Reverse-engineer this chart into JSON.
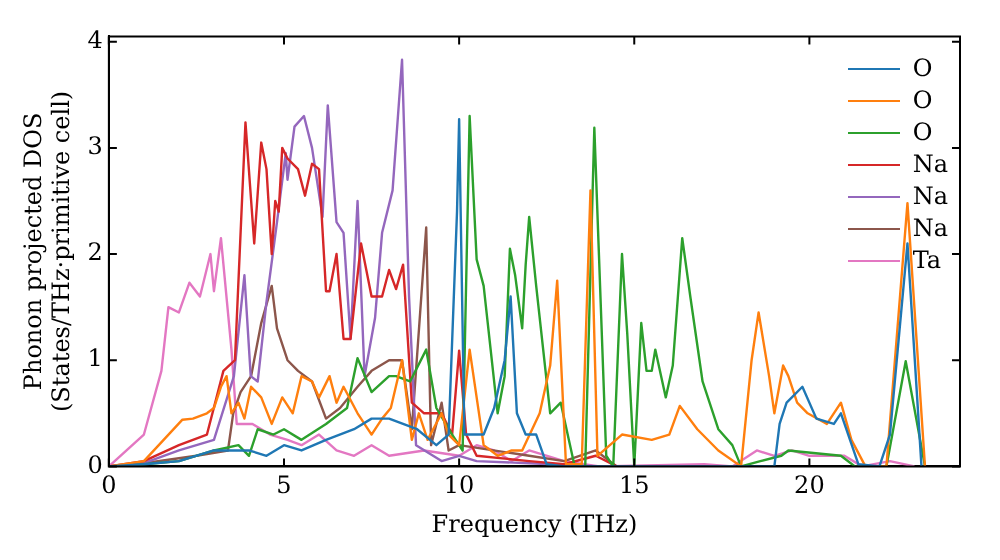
{
  "chart_data": {
    "type": "line",
    "xlabel": "Frequency (THz)",
    "ylabel": "Phonon projected DOS\n(States/THz·primitive cell)",
    "xlim": [
      0,
      24.3
    ],
    "ylim": [
      0,
      4.05
    ],
    "xticks": [
      0,
      5,
      10,
      15,
      20
    ],
    "yticks": [
      0,
      1,
      2,
      3,
      4
    ],
    "legend": "top right",
    "grid": false,
    "series": [
      {
        "name": "O",
        "color": "#1f77b4",
        "x": [
          0,
          1,
          2,
          3,
          4,
          4.5,
          5,
          5.5,
          6.2,
          7,
          7.5,
          8,
          8.8,
          9.35,
          9.7,
          9.94,
          10.0,
          10.15,
          10.7,
          11.0,
          11.3,
          11.47,
          11.65,
          11.9,
          12.2,
          12.5,
          13,
          19,
          19.15,
          19.35,
          19.5,
          19.8,
          20.2,
          20.7,
          20.9,
          21.4,
          22,
          22.3,
          22.8,
          23.2
        ],
        "values": [
          0,
          0.02,
          0.05,
          0.15,
          0.15,
          0.1,
          0.2,
          0.15,
          0.25,
          0.35,
          0.45,
          0.45,
          0.35,
          0.2,
          0.3,
          2.4,
          3.27,
          0.3,
          0.3,
          0.55,
          1.0,
          1.6,
          0.5,
          0.3,
          0.3,
          0.02,
          0,
          0,
          0.4,
          0.6,
          0.65,
          0.75,
          0.45,
          0.4,
          0.5,
          0.02,
          0,
          0.3,
          2.1,
          0
        ]
      },
      {
        "name": "O",
        "color": "#ff7f0e",
        "x": [
          0,
          1,
          2.1,
          2.4,
          2.8,
          3.0,
          3.2,
          3.36,
          3.5,
          3.7,
          3.87,
          4.06,
          4.35,
          4.65,
          4.95,
          5.25,
          5.5,
          5.8,
          6.0,
          6.3,
          6.5,
          6.7,
          7.1,
          7.5,
          7.8,
          8.05,
          8.37,
          8.65,
          8.85,
          9.1,
          9.5,
          9.7,
          10.0,
          10.3,
          10.7,
          11.1,
          11.5,
          11.8,
          12.3,
          12.6,
          12.8,
          13.05,
          13.5,
          13.75,
          13.95,
          14.65,
          15.5,
          16.0,
          16.3,
          16.8,
          17.4,
          18.05,
          18.35,
          18.55,
          18.85,
          19.0,
          19.25,
          19.4,
          19.65,
          19.95,
          20.5,
          20.9,
          21.2,
          21.6,
          22.2,
          22.8,
          23.3
        ],
        "values": [
          0,
          0.05,
          0.44,
          0.45,
          0.5,
          0.55,
          0.75,
          0.85,
          0.5,
          0.6,
          0.45,
          0.75,
          0.65,
          0.4,
          0.65,
          0.5,
          0.85,
          0.8,
          0.65,
          0.85,
          0.6,
          0.75,
          0.5,
          0.3,
          0.45,
          0.55,
          1.0,
          0.25,
          0.5,
          0.25,
          0.5,
          0.3,
          0.2,
          1.1,
          0.2,
          0.1,
          0.15,
          0.15,
          0.5,
          0.95,
          1.75,
          0.02,
          0.02,
          2.6,
          0.1,
          0.3,
          0.25,
          0.3,
          0.57,
          0.35,
          0.15,
          0,
          1.0,
          1.45,
          0.85,
          0.5,
          0.95,
          0.85,
          0.6,
          0.5,
          0.4,
          0.6,
          0.25,
          0,
          0,
          2.48,
          0
        ]
      },
      {
        "name": "O",
        "color": "#2ca02c",
        "x": [
          0,
          1,
          2,
          3,
          3.7,
          4.0,
          4.25,
          4.7,
          5.0,
          5.5,
          6.2,
          6.8,
          7.1,
          7.5,
          8.0,
          8.2,
          8.6,
          9.06,
          9.35,
          9.8,
          10.1,
          10.3,
          10.5,
          10.7,
          11.1,
          11.3,
          11.45,
          11.6,
          11.8,
          11.9,
          12.0,
          12.2,
          12.6,
          12.9,
          13.3,
          13.6,
          13.86,
          14.2,
          14.4,
          14.65,
          14.8,
          15.0,
          15.2,
          15.35,
          15.5,
          15.6,
          15.9,
          16.1,
          16.37,
          16.6,
          16.95,
          17.4,
          17.8,
          18.05,
          18.6,
          19.2,
          19.4,
          20.9,
          21.3,
          22.2,
          22.75,
          23.3
        ],
        "values": [
          0,
          0.02,
          0.05,
          0.15,
          0.2,
          0.1,
          0.35,
          0.3,
          0.35,
          0.25,
          0.4,
          0.55,
          1.02,
          0.7,
          0.85,
          0.85,
          0.8,
          1.1,
          0.55,
          0.3,
          0.15,
          3.3,
          1.95,
          1.7,
          0.5,
          0.85,
          2.05,
          1.8,
          1.3,
          1.9,
          2.35,
          1.7,
          0.5,
          0.6,
          0,
          0,
          3.19,
          0.1,
          0,
          2.0,
          1.25,
          0,
          1.35,
          0.9,
          0.9,
          1.1,
          0.65,
          0.95,
          2.15,
          1.6,
          0.8,
          0.35,
          0.2,
          0,
          0.05,
          0.1,
          0.15,
          0.1,
          0,
          0,
          0.99,
          0
        ]
      },
      {
        "name": "Na",
        "color": "#d62728",
        "x": [
          0,
          1,
          2,
          2.8,
          3.27,
          3.6,
          3.9,
          4.15,
          4.35,
          4.5,
          4.65,
          4.75,
          4.85,
          4.95,
          5.1,
          5.4,
          5.6,
          5.8,
          6.0,
          6.2,
          6.3,
          6.5,
          6.7,
          6.9,
          7.2,
          7.5,
          7.8,
          8.0,
          8.2,
          8.4,
          8.65,
          9.0,
          9.5,
          9.8,
          10.0,
          10.2,
          10.5,
          12,
          13,
          13.9,
          14.5
        ],
        "values": [
          0,
          0.05,
          0.2,
          0.3,
          0.9,
          1.0,
          3.24,
          2.1,
          3.05,
          2.8,
          2.0,
          2.5,
          2.4,
          3.0,
          2.9,
          2.8,
          2.55,
          2.85,
          2.8,
          1.65,
          1.65,
          2.0,
          1.2,
          1.2,
          2.1,
          1.6,
          1.6,
          1.85,
          1.67,
          1.9,
          0.6,
          0.5,
          0.5,
          0.3,
          1.09,
          0.3,
          0.1,
          0.05,
          0.02,
          0.1,
          0
        ]
      },
      {
        "name": "Na",
        "color": "#9467bd",
        "x": [
          0,
          1,
          2,
          3,
          3.57,
          3.87,
          4.05,
          4.25,
          4.5,
          4.8,
          5.05,
          5.1,
          5.3,
          5.57,
          5.8,
          6.1,
          6.25,
          6.5,
          6.7,
          6.9,
          7.1,
          7.3,
          7.6,
          7.8,
          8.1,
          8.37,
          8.57,
          8.77,
          9.5,
          10.0,
          10.5,
          12,
          14
        ],
        "values": [
          0,
          0.03,
          0.15,
          0.25,
          0.85,
          1.8,
          0.85,
          0.8,
          1.55,
          2.3,
          2.95,
          2.7,
          3.2,
          3.3,
          3.0,
          2.35,
          3.4,
          2.3,
          2.2,
          1.2,
          2.5,
          0.85,
          1.4,
          2.2,
          2.6,
          3.83,
          1.6,
          0.2,
          0.05,
          0.1,
          0.05,
          0.03,
          0
        ]
      },
      {
        "name": "Na",
        "color": "#8c564b",
        "x": [
          0,
          1,
          2.5,
          3.4,
          3.55,
          3.76,
          4.06,
          4.35,
          4.65,
          4.8,
          5.1,
          5.4,
          5.8,
          6.2,
          6.6,
          7.1,
          7.5,
          8.0,
          8.37,
          8.65,
          9.06,
          9.2,
          9.5,
          9.7,
          10.0,
          12,
          13,
          13.9,
          14.5
        ],
        "values": [
          0,
          0.03,
          0.1,
          0.15,
          0.5,
          0.7,
          0.85,
          1.35,
          1.7,
          1.3,
          1.0,
          0.9,
          0.8,
          0.45,
          0.55,
          0.75,
          0.9,
          1.0,
          1.0,
          0.35,
          2.25,
          0.2,
          0.6,
          0.15,
          0.2,
          0.1,
          0.05,
          0.15,
          0
        ]
      },
      {
        "name": "Ta",
        "color": "#e377c2",
        "x": [
          0,
          1,
          1.5,
          1.7,
          2.0,
          2.3,
          2.6,
          2.9,
          3.0,
          3.2,
          3.5,
          3.65,
          4.1,
          4.6,
          5.1,
          5.5,
          6.0,
          6.5,
          7.0,
          7.5,
          8.0,
          9.0,
          10.0,
          10.5,
          11.0,
          11.5,
          12.0,
          13.0,
          14.0,
          17.0,
          17.8,
          18.5,
          19.0,
          19.5,
          20.0,
          21.0,
          21.5,
          22.3,
          23.0
        ],
        "values": [
          0,
          0.3,
          0.9,
          1.5,
          1.45,
          1.73,
          1.6,
          2.0,
          1.65,
          2.15,
          1.1,
          0.4,
          0.4,
          0.3,
          0.25,
          0.2,
          0.3,
          0.15,
          0.1,
          0.2,
          0.1,
          0.15,
          0.1,
          0.2,
          0.15,
          0.05,
          0.15,
          0.05,
          0,
          0.02,
          0,
          0.15,
          0.1,
          0.15,
          0.1,
          0.1,
          0,
          0.05,
          0
        ]
      }
    ]
  }
}
